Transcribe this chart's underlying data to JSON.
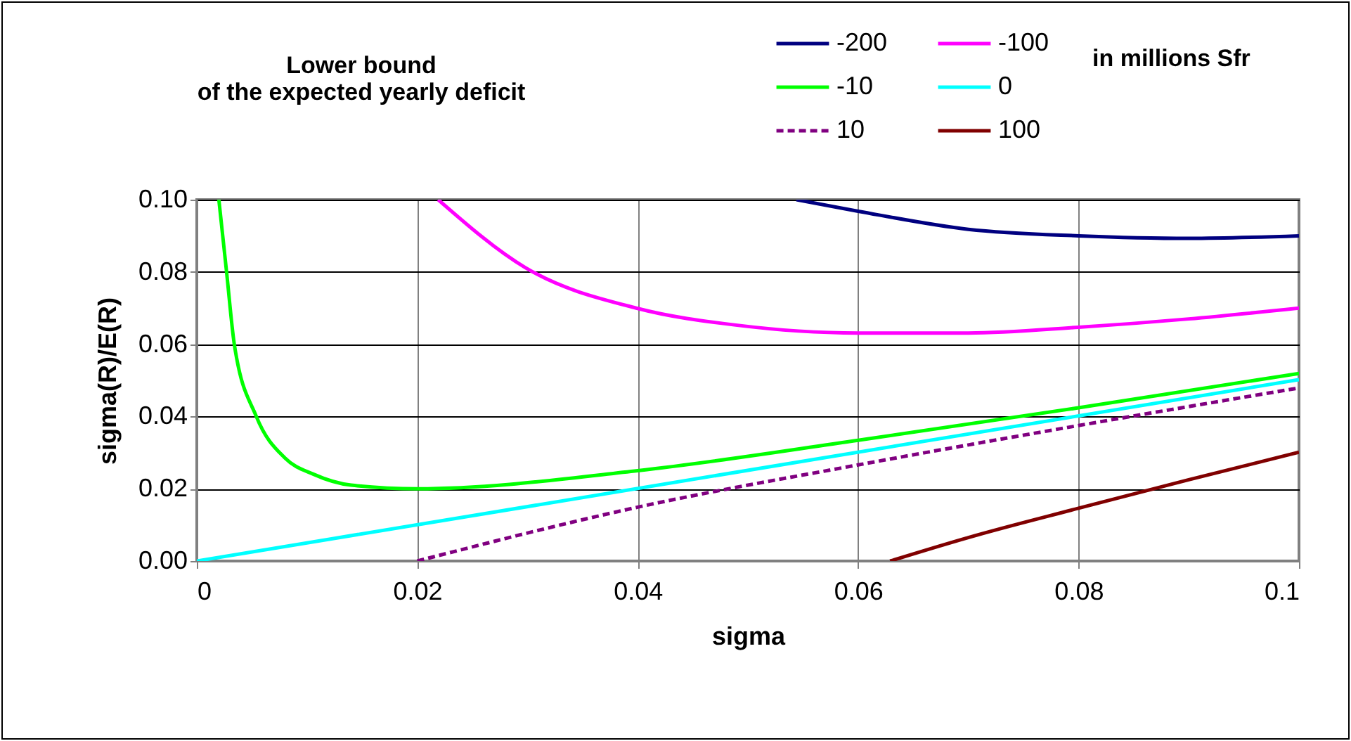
{
  "chart_data": {
    "type": "line",
    "xlabel": "sigma",
    "ylabel": "sigma(R)/E(R)",
    "legend_title": "Lower bound\nof the expected yearly deficit",
    "annotations": [
      "in millions Sfr"
    ],
    "xlim": [
      0,
      0.1
    ],
    "xticks": [
      0,
      0.02,
      0.04,
      0.06,
      0.08,
      0.1
    ],
    "ylim": [
      0,
      0.1
    ],
    "yticks": [
      {
        "value": 0,
        "label": "0.00"
      },
      {
        "value": 0.02,
        "label": "0.02"
      },
      {
        "value": 0.04,
        "label": "0.04"
      },
      {
        "value": 0.06,
        "label": "0.06"
      },
      {
        "value": 0.08,
        "label": "0.08"
      },
      {
        "value": 0.1,
        "label": "0.10"
      }
    ],
    "grid": true,
    "legend": "top",
    "line_style": "solid",
    "series": [
      {
        "name": "-200",
        "color": "#000080",
        "x": [
          0.0544,
          0.06,
          0.07,
          0.08,
          0.09,
          0.1
        ],
        "values": [
          0.1,
          0.0968,
          0.0918,
          0.09,
          0.0893,
          0.09
        ]
      },
      {
        "name": "-100",
        "color": "#ff00ff",
        "x": [
          0.0219,
          0.0298,
          0.04,
          0.0489,
          0.06,
          0.07,
          0.08,
          0.09,
          0.1
        ],
        "values": [
          0.1,
          0.0812,
          0.0699,
          0.0653,
          0.0631,
          0.0631,
          0.0647,
          0.067,
          0.07
        ]
      },
      {
        "name": "-10",
        "color": "#00ff00",
        "x": [
          0.002,
          0.0027,
          0.0034,
          0.0054,
          0.008,
          0.0106,
          0.014,
          0.02,
          0.04,
          0.06,
          0.08,
          0.1
        ],
        "values": [
          0.1,
          0.08,
          0.06,
          0.04,
          0.0285,
          0.024,
          0.021,
          0.02,
          0.025,
          0.0334,
          0.0424,
          0.0519
        ]
      },
      {
        "name": "0",
        "color": "#00ffff",
        "x": [
          0,
          0.1
        ],
        "values": [
          0,
          0.0502
        ]
      },
      {
        "name": "10",
        "color": "#800080",
        "line_style": "dashed",
        "x": [
          0.02,
          0.04,
          0.06,
          0.08,
          0.1
        ],
        "values": [
          0,
          0.0149,
          0.0266,
          0.0375,
          0.0479
        ]
      },
      {
        "name": "100",
        "color": "#800000",
        "x": [
          0.0629,
          0.07,
          0.08,
          0.09,
          0.1
        ],
        "values": [
          0,
          0.0065,
          0.0146,
          0.0225,
          0.0301
        ]
      }
    ]
  }
}
